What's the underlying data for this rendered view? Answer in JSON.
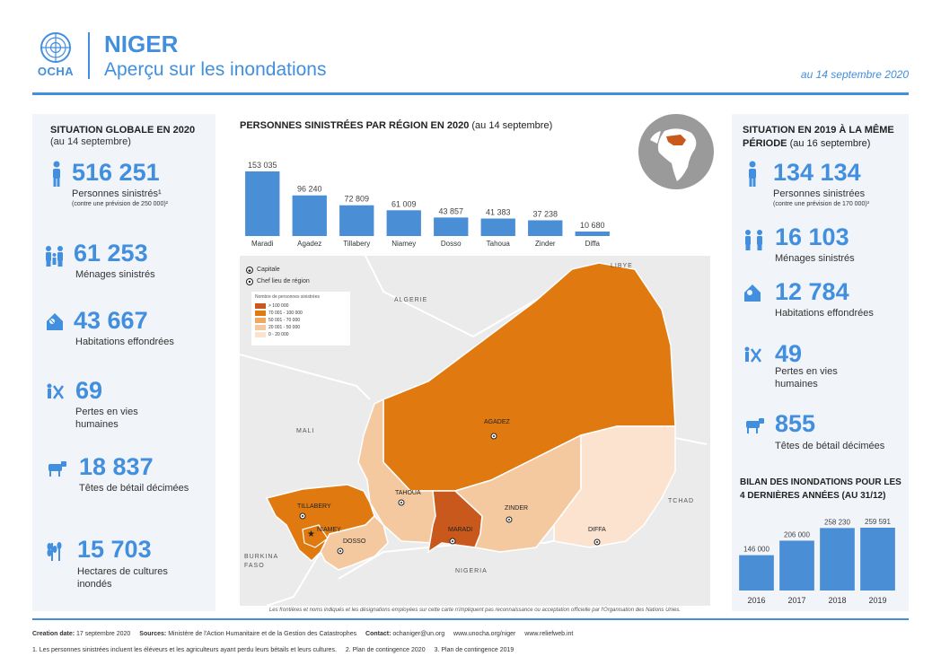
{
  "header": {
    "logo_text": "OCHA",
    "title": "NIGER",
    "subtitle": "Aperçu sur les inondations",
    "date": "au  14 septembre 2020",
    "accent": "#418fde"
  },
  "left_panel": {
    "title": "SITUATION GLOBALE EN 2020",
    "subtitle": "(au 14 septembre)",
    "stats": [
      {
        "icon": "person-icon",
        "value": "516 251",
        "label": "Personnes sinistrés¹",
        "note": "(contre une prévision de 250 000)²"
      },
      {
        "icon": "family-icon",
        "value": "61 253",
        "label": "Ménages sinistrés"
      },
      {
        "icon": "collapsed-house-icon",
        "value": "43 667",
        "label": "Habitations effondrées"
      },
      {
        "icon": "deaths-icon",
        "value": "69",
        "label": "Pertes en vies humaines"
      },
      {
        "icon": "livestock-icon",
        "value": "18 837",
        "label": "Têtes de bétail décimées"
      },
      {
        "icon": "crops-icon",
        "value": "15 703",
        "label": "Hectares de cultures inondés"
      }
    ]
  },
  "right_panel": {
    "title_bold": "SITUATION  EN 2019 À LA MÊME PÉRIODE",
    "title_sub": "(au 16 septembre)",
    "stats": [
      {
        "icon": "person-icon",
        "value": "134 134",
        "label": "Personnes sinistrées",
        "note": "(contre une prévision de 170 000)³"
      },
      {
        "icon": "family-icon",
        "value": "16 103",
        "label": "Ménages sinistrés"
      },
      {
        "icon": "collapsed-house-icon",
        "value": "12 784",
        "label": "Habitations effondrées"
      },
      {
        "icon": "deaths-icon",
        "value": "49",
        "label": "Pertes en vies humaines"
      },
      {
        "icon": "livestock-icon",
        "value": "855",
        "label": "Têtes de bétail décimées"
      }
    ],
    "bilan_title": "BILAN DES INONDATIONS POUR LES 4 DERNIÈRES ANNÉES (AU 31/12)"
  },
  "center": {
    "title_bold": "PERSONNES SINISTRÉES PAR RÉGION EN 2020",
    "title_sub": " (au 14 septembre)"
  },
  "chart_data": [
    {
      "type": "bar",
      "title": "PERSONNES SINISTRÉES PAR RÉGION EN 2020 (au 14 septembre)",
      "categories": [
        "Maradi",
        "Agadez",
        "Tillabery",
        "Niamey",
        "Dosso",
        "Tahoua",
        "Zinder",
        "Diffa"
      ],
      "values": [
        153035,
        96240,
        72809,
        61009,
        43857,
        41383,
        37238,
        10680
      ],
      "value_labels": [
        "153 035",
        "96 240",
        "72 809",
        "61 009",
        "43 857",
        "41 383",
        "37 238",
        "10 680"
      ],
      "ylim": [
        0,
        153035
      ],
      "color": "#4a8fd6"
    },
    {
      "type": "bar",
      "title": "BILAN DES INONDATIONS POUR LES 4 DERNIÈRES ANNÉES (AU 31/12)",
      "categories": [
        "2016",
        "2017",
        "2018",
        "2019"
      ],
      "values": [
        146000,
        206000,
        258230,
        259591
      ],
      "value_labels": [
        "146 000",
        "206 000",
        "258 230",
        "259 591"
      ],
      "ylim": [
        0,
        259591
      ],
      "color": "#4a8fd6"
    }
  ],
  "map": {
    "key_capital": "Capitale",
    "key_chef": "Chef lieu de région",
    "legend_title": "Nombre de personnes sinistrées",
    "legend": [
      {
        "label": "> 100 000",
        "color": "#c8581c"
      },
      {
        "label": "70 001 - 100 000",
        "color": "#e07a10"
      },
      {
        "label": "50 001 - 70 000",
        "color": "#f0a860"
      },
      {
        "label": "20 001 - 50 000",
        "color": "#f5c9a0"
      },
      {
        "label": "0 - 20 000",
        "color": "#fbe3d0"
      }
    ],
    "countries": {
      "libye": "LIBYE",
      "algerie": "ALGERIE",
      "mali": "MALI",
      "tchad": "TCHAD",
      "burkina": "BURKINA",
      "faso": "FASO",
      "nigeria": "NIGERIA"
    },
    "regions": {
      "agadez": "AGADEZ",
      "tahoua": "TAHOUA",
      "tillabery": "TILLABERY",
      "niamey": "NIAMEY",
      "dosso": "DOSSO",
      "maradi": "MARADI",
      "zinder": "ZINDER",
      "diffa": "DIFFA"
    },
    "disclaimer": "Les frontières et noms indiqués et les désignations employées sur cette carte n'impliquent pas reconnaissance ou acceptation officielle par l'Organisation des Nations Unies."
  },
  "footer": {
    "creation_label": "Creation date:",
    "creation_value": " 17 septembre 2020",
    "sources_label": "Sources:",
    "sources_value": " Ministère de l'Action Humanitaire et de la Gestion des Catastrophes",
    "contact_label": "Contact:",
    "contact_value": " ochaniger@un.org",
    "url1": "www.unocha.org/niger",
    "url2": "www.reliefweb.int",
    "note1": "1. Les personnes sinistrées incluent les éléveurs et les agriculteurs ayant perdu leurs bétails et leurs cultures.",
    "note2": "2. Plan de contingence 2020",
    "note3": "3. Plan de contingence 2019"
  }
}
